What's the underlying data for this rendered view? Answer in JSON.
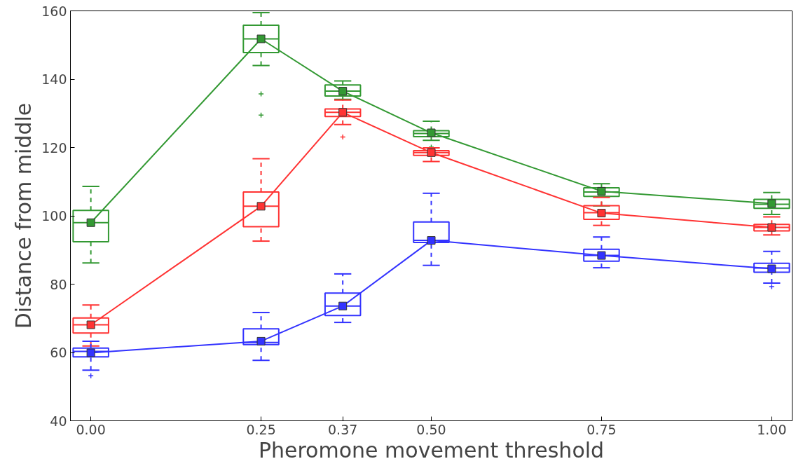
{
  "chart_data": {
    "type": "box",
    "xlabel": "Pheromone movement threshold",
    "ylabel": "Distance from middle",
    "x": [
      0,
      0.25,
      0.37,
      0.5,
      0.75,
      1.0
    ],
    "xlim": [
      -0.03,
      1.03
    ],
    "xticks": [
      {
        "value": 0,
        "label": "0.00"
      },
      {
        "value": 0.25,
        "label": "0.25"
      },
      {
        "value": 0.37,
        "label": "0.37"
      },
      {
        "value": 0.5,
        "label": "0.50"
      },
      {
        "value": 0.75,
        "label": "0.75"
      },
      {
        "value": 1.0,
        "label": "1.00"
      }
    ],
    "ylim": [
      40,
      160
    ],
    "yticks": [
      40,
      60,
      80,
      100,
      120,
      140,
      160
    ],
    "grid": false,
    "marker": "square",
    "line_style": "solid",
    "series": [
      {
        "color": "#339933",
        "boxes": [
          {
            "low": 86.2,
            "q1": 92.4,
            "median": 98.0,
            "q3": 101.6,
            "high": 108.6
          },
          {
            "low": 144.0,
            "q1": 147.8,
            "median": 151.8,
            "q3": 155.8,
            "high": 159.5,
            "outliers": [
              135.7,
              129.5
            ]
          },
          {
            "low": 134.1,
            "q1": 135.1,
            "median": 136.5,
            "q3": 138.3,
            "high": 139.5
          },
          {
            "low": 122.1,
            "q1": 123.2,
            "median": 124.1,
            "q3": 124.9,
            "high": 127.7,
            "outliers": [
              120.1
            ]
          },
          {
            "low": 102.9,
            "q1": 105.7,
            "median": 107.0,
            "q3": 108.2,
            "high": 109.4
          },
          {
            "low": 100.4,
            "q1": 102.2,
            "median": 103.4,
            "q3": 104.8,
            "high": 106.8
          }
        ]
      },
      {
        "color": "#ff3333",
        "boxes": [
          {
            "low": 61.9,
            "q1": 65.7,
            "median": 68.1,
            "q3": 70.1,
            "high": 73.9
          },
          {
            "low": 92.6,
            "q1": 96.8,
            "median": 102.8,
            "q3": 107.0,
            "high": 116.7
          },
          {
            "low": 126.7,
            "q1": 129.1,
            "median": 130.3,
            "q3": 131.3,
            "high": 133.9,
            "outliers": [
              123.1
            ]
          },
          {
            "low": 115.9,
            "q1": 117.7,
            "median": 118.5,
            "q3": 119.1,
            "high": 119.9
          },
          {
            "low": 97.2,
            "q1": 99.0,
            "median": 100.9,
            "q3": 103.0,
            "high": 105.4
          },
          {
            "low": 94.4,
            "q1": 95.6,
            "median": 96.6,
            "q3": 97.5,
            "high": 99.7
          }
        ]
      },
      {
        "color": "#3333ff",
        "boxes": [
          {
            "low": 54.8,
            "q1": 58.7,
            "median": 60.3,
            "q3": 61.3,
            "high": 63.3,
            "outliers": [
              53.2
            ]
          },
          {
            "low": 57.7,
            "q1": 62.3,
            "median": 62.9,
            "q3": 66.9,
            "high": 71.7
          },
          {
            "low": 68.8,
            "q1": 70.8,
            "median": 73.6,
            "q3": 77.4,
            "high": 83.0
          },
          {
            "low": 85.5,
            "q1": 92.2,
            "median": 92.8,
            "q3": 98.2,
            "high": 106.6
          },
          {
            "low": 84.8,
            "q1": 86.7,
            "median": 88.4,
            "q3": 90.2,
            "high": 93.8
          },
          {
            "low": 80.3,
            "q1": 83.5,
            "median": 84.7,
            "q3": 86.1,
            "high": 89.6,
            "outliers": [
              79.3
            ]
          }
        ]
      },
      {
        "type": "line",
        "color": "#339933",
        "values": [
          98.0,
          151.8,
          136.5,
          124.3,
          107.2,
          103.6
        ]
      },
      {
        "type": "line",
        "color": "#ff3333",
        "values": [
          68.1,
          102.8,
          130.3,
          118.5,
          100.8,
          96.6
        ]
      },
      {
        "type": "line",
        "color": "#3333ff",
        "values": [
          59.9,
          63.3,
          73.6,
          92.8,
          88.4,
          84.5
        ]
      }
    ]
  }
}
